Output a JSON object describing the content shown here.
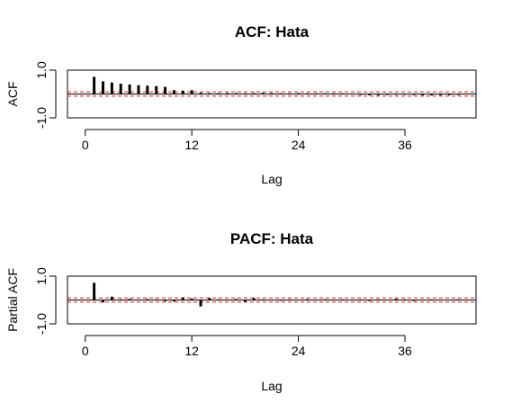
{
  "colors": {
    "bar": "#000000",
    "confidence_band": "#dd1c1c",
    "frame": "#000000",
    "background": "#ffffff"
  },
  "chart_data": [
    {
      "type": "bar",
      "title": "ACF: Hata",
      "xlabel": "Lag",
      "ylabel": "ACF",
      "xlim": [
        -2,
        44
      ],
      "ylim": [
        -1,
        1
      ],
      "x_ticks": [
        0,
        12,
        24,
        36
      ],
      "y_ticks": [
        -1,
        1
      ],
      "y_tick_labels": [
        "-1.0",
        "1.0"
      ],
      "confidence_band": [
        -0.09,
        0.09
      ],
      "lags": [
        1,
        2,
        3,
        4,
        5,
        6,
        7,
        8,
        9,
        10,
        11,
        12,
        13,
        14,
        15,
        16,
        17,
        18,
        19,
        20,
        21,
        22,
        23,
        24,
        25,
        26,
        27,
        28,
        29,
        30,
        31,
        32,
        33,
        34,
        35,
        36,
        37,
        38,
        39,
        40,
        41,
        42
      ],
      "values": [
        0.72,
        0.53,
        0.48,
        0.43,
        0.4,
        0.37,
        0.35,
        0.33,
        0.3,
        0.16,
        0.14,
        0.16,
        0.05,
        0.04,
        0.04,
        0.04,
        0.04,
        0.03,
        0.04,
        0.05,
        0.04,
        0.03,
        0.03,
        0.04,
        0.03,
        0.03,
        0.03,
        0.03,
        0.03,
        0.02,
        -0.04,
        -0.05,
        -0.05,
        -0.04,
        -0.03,
        -0.03,
        -0.04,
        -0.05,
        -0.06,
        -0.05,
        -0.05,
        -0.04
      ],
      "grid": false,
      "legend": "none"
    },
    {
      "type": "bar",
      "title": "PACF: Hata",
      "xlabel": "Lag",
      "ylabel": "Partial ACF",
      "xlim": [
        -2,
        44
      ],
      "ylim": [
        -1,
        1
      ],
      "x_ticks": [
        0,
        12,
        24,
        36
      ],
      "y_ticks": [
        -1,
        1
      ],
      "y_tick_labels": [
        "-1.0",
        "1.0"
      ],
      "confidence_band": [
        -0.09,
        0.09
      ],
      "lags": [
        1,
        2,
        3,
        4,
        5,
        6,
        7,
        8,
        9,
        10,
        11,
        12,
        13,
        14,
        15,
        16,
        17,
        18,
        19,
        20,
        21,
        22,
        23,
        24,
        25,
        26,
        27,
        28,
        29,
        30,
        31,
        32,
        33,
        34,
        35,
        36,
        37,
        38,
        39,
        40,
        41,
        42
      ],
      "values": [
        0.72,
        -0.1,
        0.14,
        0.03,
        0.05,
        0.02,
        0.04,
        0.03,
        -0.05,
        -0.06,
        0.1,
        0.06,
        -0.27,
        0.08,
        0.03,
        0.02,
        0.04,
        -0.07,
        0.08,
        0.03,
        0.02,
        -0.03,
        0.03,
        0.02,
        0.04,
        0.02,
        0.03,
        0.02,
        0.03,
        0.02,
        0.03,
        -0.04,
        0.03,
        0.02,
        0.05,
        0.03,
        -0.04,
        0.02,
        0.03,
        0.02,
        0.02,
        0.03
      ],
      "grid": false,
      "legend": "none"
    }
  ]
}
